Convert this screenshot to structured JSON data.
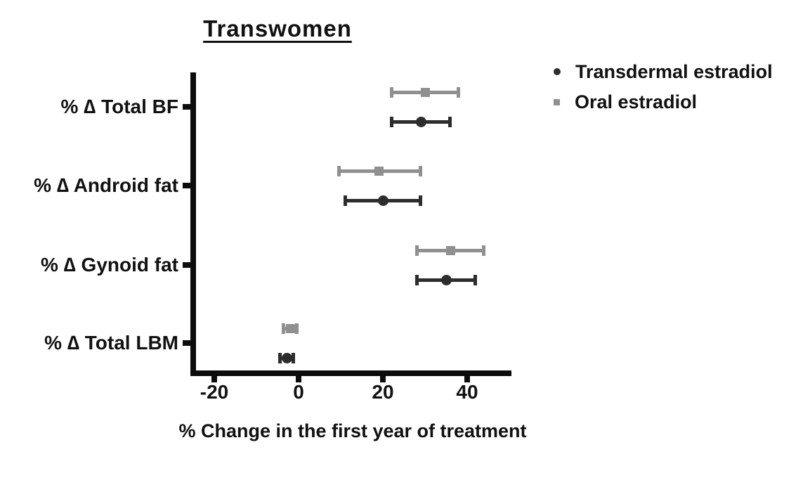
{
  "chart_data": {
    "type": "scatter",
    "subtype": "dot-plot-with-error-bars",
    "title": "Transwomen",
    "xlabel": "% Change in the first year of treatment",
    "categories": [
      "% ∆ Total BF",
      "% ∆ Android fat",
      "% ∆ Gynoid fat",
      "% ∆ Total LBM"
    ],
    "xticks": [
      "-20",
      "0",
      "20",
      "40"
    ],
    "xtick_values": [
      -20,
      0,
      20,
      40
    ],
    "xlim": [
      -25.5,
      50.5
    ],
    "grid": false,
    "error_bars": true,
    "legend_position": "top-right",
    "series": [
      {
        "name": "Transdermal estradiol",
        "marker": "circle",
        "color": "#2d2d2d",
        "values": [
          29,
          20,
          35,
          -2.8
        ],
        "ci_low": [
          22,
          11,
          28,
          -4.5
        ],
        "ci_high": [
          36,
          29,
          42,
          -1.2
        ]
      },
      {
        "name": "Oral estradiol",
        "marker": "square",
        "color": "#909090",
        "values": [
          30,
          19,
          36,
          -2
        ],
        "ci_low": [
          22,
          9.5,
          28,
          -3.7
        ],
        "ci_high": [
          38,
          29,
          44,
          -0.3
        ]
      }
    ]
  },
  "colors": {
    "axis": "#0c0c0c",
    "text": "#111111",
    "background": "#ffffff"
  }
}
